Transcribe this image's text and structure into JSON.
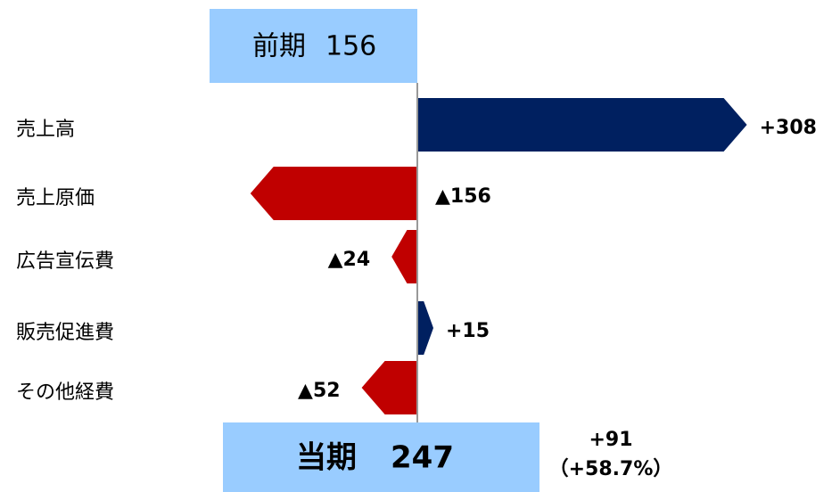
{
  "chart_data": {
    "type": "arrow_bar",
    "start_label": "前期",
    "start_value": 156,
    "end_label": "当期",
    "end_value": 247,
    "change_label": "+91",
    "change_pct_label": "（+58.7%）",
    "categories": [
      "売上高",
      "売上原価",
      "広告宣伝費",
      "販売促進費",
      "その他経費"
    ],
    "values": [
      308,
      -156,
      -24,
      15,
      -52
    ],
    "value_labels": [
      "+308",
      "▲156",
      "▲24",
      "+15",
      "▲52"
    ],
    "positive_color": "#002060",
    "negative_color": "#c00000",
    "box_color": "#99ccff",
    "xlim": [
      -210,
      320
    ]
  }
}
